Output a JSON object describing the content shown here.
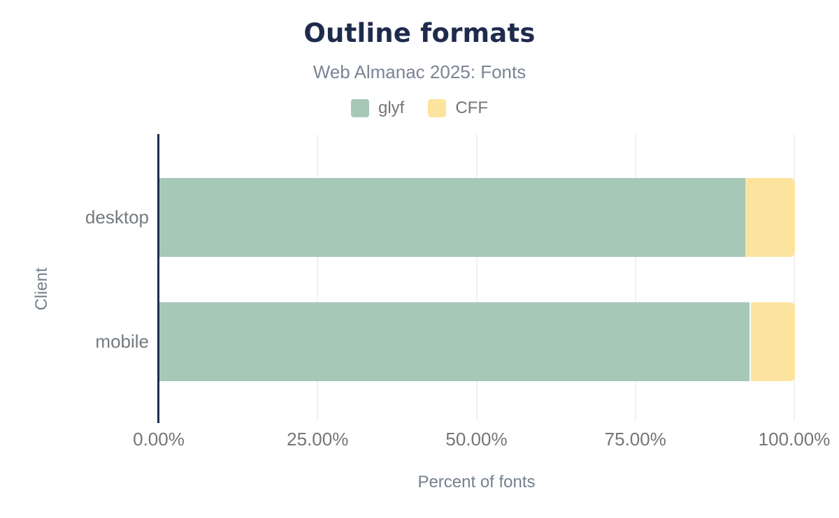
{
  "chart_data": {
    "type": "bar",
    "orientation": "horizontal",
    "stacked": true,
    "title": "Outline formats",
    "subtitle": "Web Almanac 2025: Fonts",
    "xlabel": "Percent of fonts",
    "ylabel": "Client",
    "categories": [
      "desktop",
      "mobile"
    ],
    "series": [
      {
        "name": "glyf",
        "color": "#a7c8b7",
        "values": [
          92.2,
          92.8
        ]
      },
      {
        "name": "CFF",
        "color": "#fde49e",
        "values": [
          7.8,
          6.9
        ]
      }
    ],
    "xlim": [
      0,
      100
    ],
    "x_ticks": [
      "0.00%",
      "25.00%",
      "50.00%",
      "75.00%",
      "100.00%"
    ],
    "grid": true,
    "legend_position": "top"
  },
  "legend": {
    "items": [
      {
        "label": "glyf",
        "color": "#a7c8b7"
      },
      {
        "label": "CFF",
        "color": "#fde49e"
      }
    ]
  },
  "colors": {
    "title_navy": "#1e2b4d",
    "axis_line": "#1e2b4d",
    "gridline": "#f1f1f1",
    "tick_gray": "#757575",
    "subtitle_gray": "#7b8493"
  }
}
